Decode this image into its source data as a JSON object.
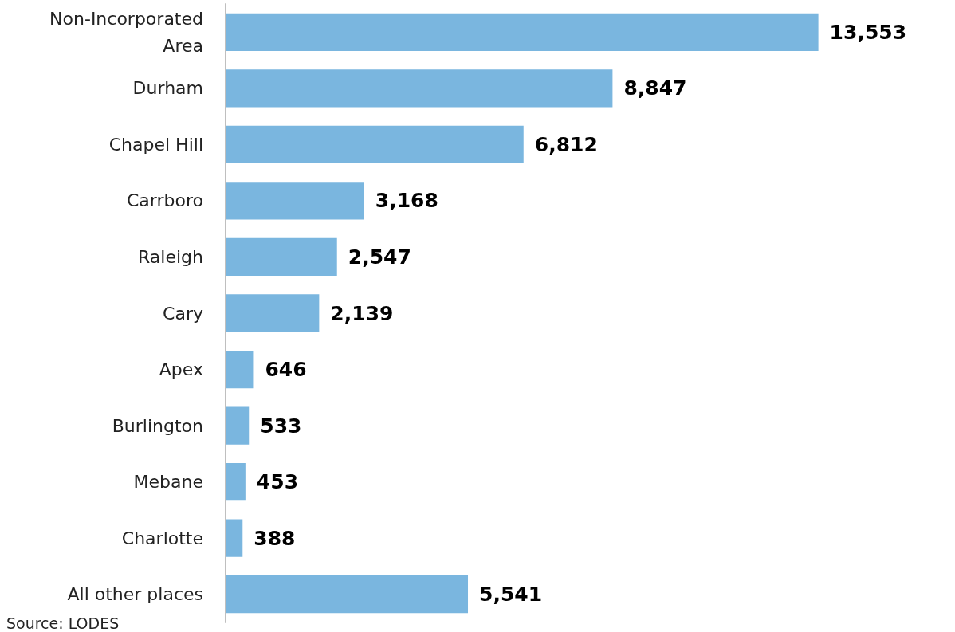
{
  "chart_data": {
    "type": "bar",
    "orientation": "horizontal",
    "categories": [
      "Non-Incorporated\nArea",
      "Durham",
      "Chapel Hill",
      "Carrboro",
      "Raleigh",
      "Cary",
      "Apex",
      "Burlington",
      "Mebane",
      "Charlotte",
      "All other places"
    ],
    "values": [
      13553,
      8847,
      6812,
      3168,
      2547,
      2139,
      646,
      533,
      453,
      388,
      5541
    ],
    "color": "#7ab6df",
    "value_labels": [
      "13,553",
      "8,847",
      "6,812",
      "3,168",
      "2,547",
      "2,139",
      "646",
      "533",
      "453",
      "388",
      "5,541"
    ],
    "grid": false,
    "annotations": [
      "Source: LODES"
    ]
  }
}
